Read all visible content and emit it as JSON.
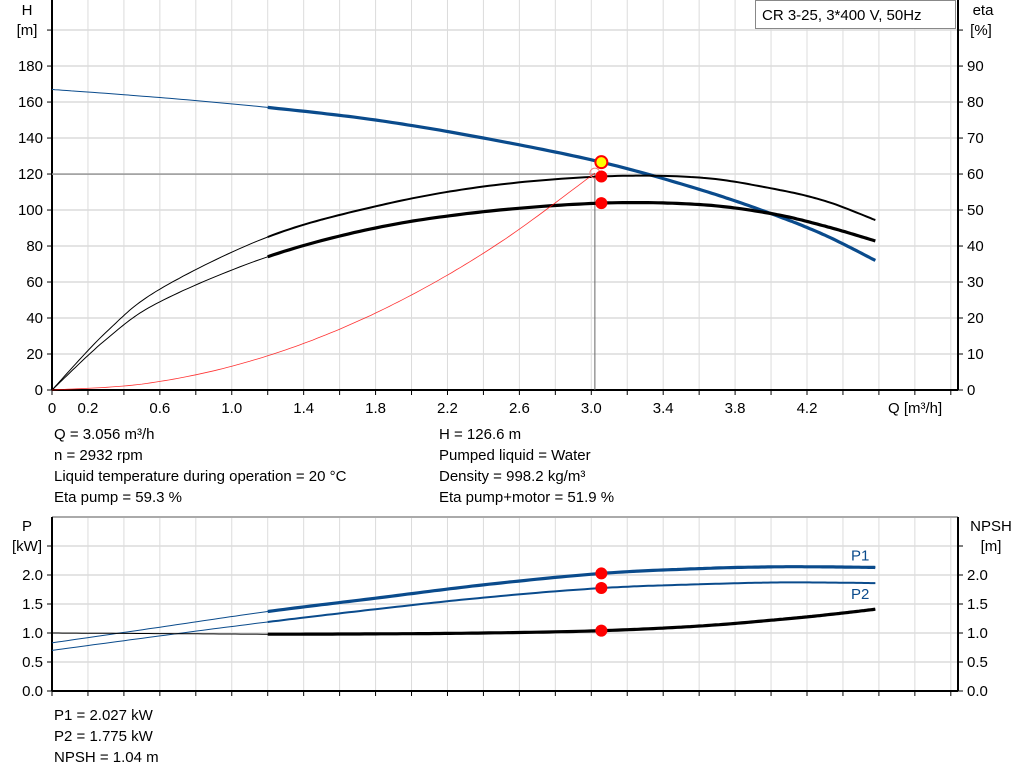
{
  "title_box": "CR 3-25, 3*400 V, 50Hz",
  "colors": {
    "head": "#0a4b8c",
    "efficiency": "#000000",
    "system": "#ff0000",
    "duty_point": "#ff0000",
    "operating_point": "#ffff00",
    "grid": "#dcdcdc"
  },
  "chart_data": [
    {
      "type": "line",
      "x_label": "Q [m³/h]",
      "x_ticks": [
        "0",
        "0.2",
        "0.6",
        "1.0",
        "1.4",
        "1.8",
        "2.2",
        "2.6",
        "3.0",
        "3.4",
        "3.8",
        "4.2"
      ],
      "xlim": [
        0,
        5.04
      ],
      "left_axis": {
        "label": "H",
        "unit": "[m]",
        "ticks": [
          "0",
          "20",
          "40",
          "60",
          "80",
          "100",
          "120",
          "140",
          "160",
          "180"
        ],
        "lim": [
          0,
          216.7
        ]
      },
      "right_axis": {
        "label": "eta",
        "unit": "[%]",
        "ticks": [
          "0",
          "10",
          "20",
          "30",
          "40",
          "50",
          "60",
          "70",
          "80",
          "90"
        ],
        "lim": [
          0,
          108.3
        ]
      },
      "grid": true,
      "series": [
        {
          "key": "H",
          "axis": "left",
          "color": "#0a4b8c",
          "thick_from": 1.2,
          "x": [
            0,
            0.6,
            1.2,
            1.8,
            2.4,
            3.056,
            3.6,
            4.0,
            4.3,
            4.58
          ],
          "y": [
            167,
            162.5,
            157,
            150,
            140,
            126.6,
            111.5,
            98,
            86,
            72
          ]
        },
        {
          "key": "eta_pump",
          "axis": "right",
          "color": "#000000",
          "thick_from": null,
          "x": [
            0,
            0.3,
            0.6,
            1.2,
            1.8,
            2.4,
            3.056,
            3.6,
            4.0,
            4.3,
            4.58
          ],
          "y": [
            0,
            16,
            28,
            42.5,
            51,
            56.5,
            59.3,
            59,
            56,
            52.5,
            47.2
          ]
        },
        {
          "key": "eta_pump_motor",
          "axis": "right",
          "color": "#000000",
          "thick_from": 1.2,
          "x": [
            0,
            0.3,
            0.6,
            1.2,
            1.8,
            2.4,
            3.056,
            3.6,
            4.0,
            4.3,
            4.58
          ],
          "y": [
            0,
            14,
            24.5,
            37,
            45,
            49.5,
            51.9,
            51.5,
            49,
            45.5,
            41.4
          ]
        },
        {
          "key": "system",
          "axis": "left",
          "color": "#ff0000",
          "thin": true,
          "x": [
            0,
            0.5,
            1.0,
            1.5,
            2.0,
            2.5,
            3.02
          ],
          "y": [
            0,
            3.3,
            13.2,
            29.7,
            52.8,
            82.5,
            120.5
          ]
        }
      ],
      "duty_points": [
        {
          "axis": "left",
          "x": 3.056,
          "y": 126.6,
          "type": "operating"
        },
        {
          "axis": "right",
          "x": 3.056,
          "y": 59.3
        },
        {
          "axis": "right",
          "x": 3.056,
          "y": 51.9
        }
      ],
      "requested_point": {
        "x": 3.02,
        "y": 120.5
      }
    },
    {
      "type": "line",
      "x_label": "",
      "xlim": [
        0,
        5.04
      ],
      "left_axis": {
        "label": "P",
        "unit": "[kW]",
        "ticks": [
          "0.0",
          "0.5",
          "1.0",
          "1.5",
          "2.0"
        ],
        "lim": [
          0,
          3.0
        ]
      },
      "right_axis": {
        "label": "NPSH",
        "unit": "[m]",
        "ticks": [
          "0.0",
          "0.5",
          "1.0",
          "1.5",
          "2.0"
        ],
        "lim": [
          0,
          3.0
        ]
      },
      "grid": true,
      "series": [
        {
          "key": "P1",
          "name": "P1",
          "color": "#0a4b8c",
          "thick_from": 1.2,
          "wide": true,
          "x": [
            0,
            0.6,
            1.2,
            1.8,
            2.4,
            3.056,
            3.6,
            4.0,
            4.3,
            4.58
          ],
          "y": [
            0.83,
            1.1,
            1.37,
            1.6,
            1.83,
            2.027,
            2.11,
            2.14,
            2.14,
            2.13
          ]
        },
        {
          "key": "P2",
          "name": "P2",
          "color": "#0a4b8c",
          "thick_from": 1.2,
          "x": [
            0,
            0.6,
            1.2,
            1.8,
            2.4,
            3.056,
            3.6,
            4.0,
            4.3,
            4.58
          ],
          "y": [
            0.7,
            0.95,
            1.19,
            1.41,
            1.61,
            1.775,
            1.84,
            1.87,
            1.87,
            1.86
          ]
        },
        {
          "key": "NPSH",
          "color": "#000000",
          "thick_from": 1.2,
          "wide": true,
          "x": [
            0,
            0.6,
            1.2,
            1.8,
            2.4,
            3.056,
            3.6,
            4.0,
            4.3,
            4.58
          ],
          "y": [
            1.0,
            0.99,
            0.98,
            0.985,
            1.0,
            1.04,
            1.12,
            1.22,
            1.31,
            1.41
          ]
        }
      ],
      "duty_points": [
        {
          "x": 3.056,
          "y": 2.027
        },
        {
          "x": 3.056,
          "y": 1.775
        },
        {
          "x": 3.056,
          "y": 1.04
        }
      ]
    }
  ],
  "info_top_left": [
    "Q = 3.056 m³/h",
    "n = 2932 rpm",
    "Liquid temperature during operation = 20 °C",
    "Eta pump = 59.3 %"
  ],
  "info_top_right": [
    "H = 126.6 m",
    "Pumped liquid = Water",
    "Density = 998.2 kg/m³",
    "Eta pump+motor = 51.9 %"
  ],
  "info_bottom": [
    "P1 = 2.027 kW",
    "P2 = 1.775 kW",
    "NPSH = 1.04 m"
  ]
}
